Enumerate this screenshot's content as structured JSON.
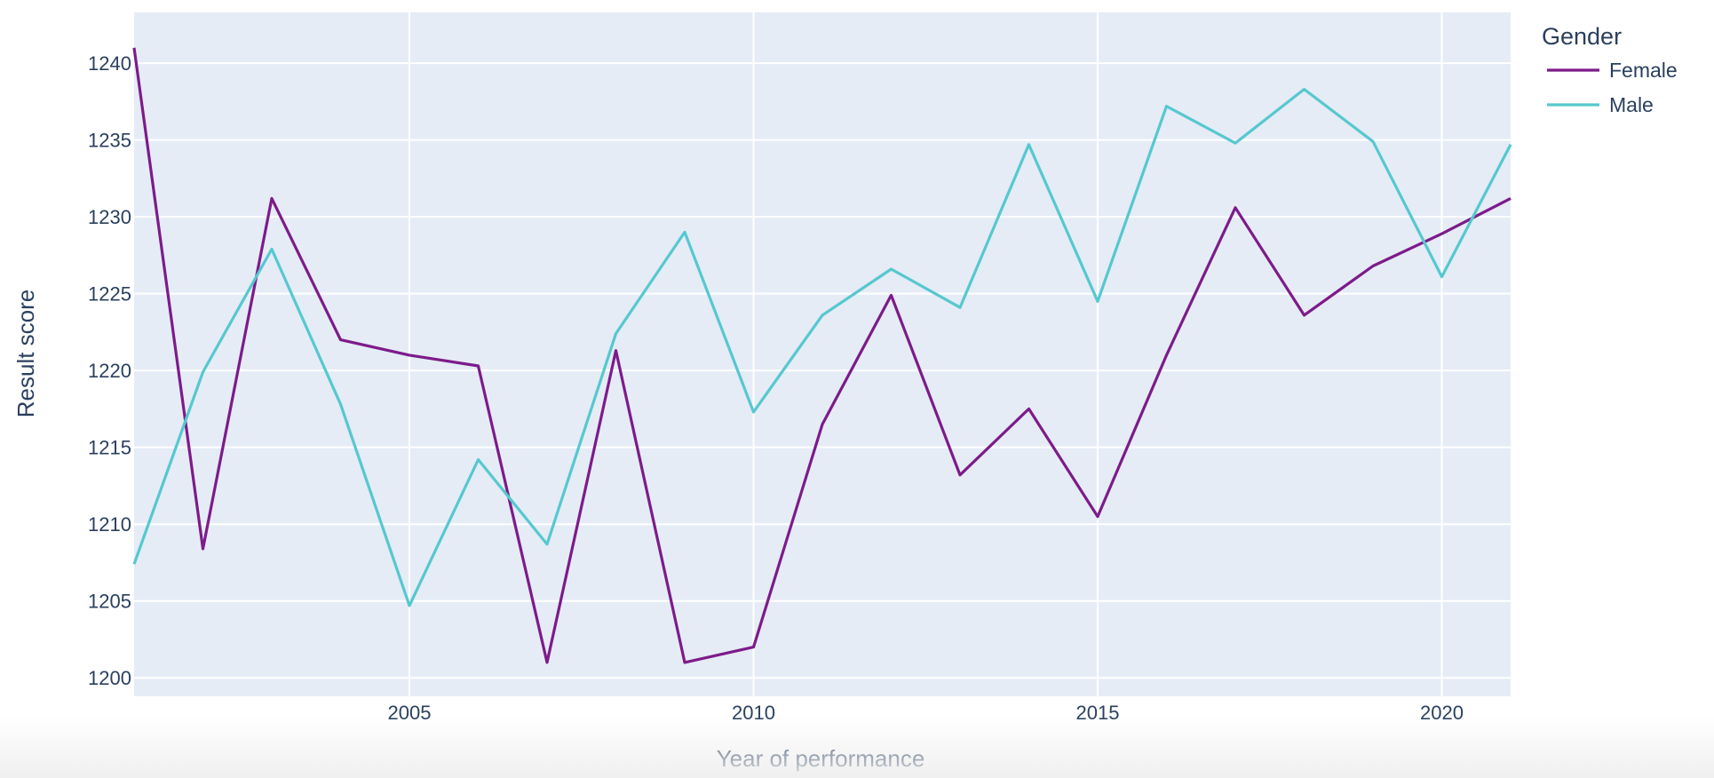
{
  "chart_data": {
    "type": "line",
    "title": "",
    "xlabel": "Year of performance",
    "ylabel": "Result score",
    "xlim": [
      2001,
      2021
    ],
    "ylim": [
      1198.8,
      1243.3
    ],
    "x_ticks": [
      2005,
      2010,
      2015,
      2020
    ],
    "y_ticks": [
      1200,
      1205,
      1210,
      1215,
      1220,
      1225,
      1230,
      1235,
      1240
    ],
    "grid": true,
    "legend": {
      "title": "Gender",
      "placement": "top-right outside plot"
    },
    "x": [
      2001,
      2002,
      2003,
      2004,
      2005,
      2006,
      2007,
      2008,
      2009,
      2010,
      2011,
      2012,
      2013,
      2014,
      2015,
      2016,
      2017,
      2018,
      2019,
      2020,
      2021
    ],
    "series": [
      {
        "name": "Female",
        "color": "#7d1b8a",
        "values": [
          1241,
          1208.4,
          1231.2,
          1222,
          1221,
          1220.3,
          1201,
          1221.3,
          1201,
          1202,
          1216.5,
          1224.9,
          1213.2,
          1217.5,
          1210.5,
          1221,
          1230.6,
          1223.6,
          1226.8,
          1228.9,
          1231.2
        ]
      },
      {
        "name": "Male",
        "color": "#56c8cf",
        "values": [
          1207.4,
          1219.9,
          1227.9,
          1217.8,
          1204.7,
          1214.2,
          1208.7,
          1222.4,
          1229,
          1217.3,
          1223.6,
          1226.6,
          1224.1,
          1234.7,
          1224.5,
          1237.2,
          1234.8,
          1238.3,
          1234.9,
          1226.1,
          1234.7
        ]
      }
    ]
  },
  "style": {
    "plot_bg": "#e5ecf6",
    "grid_color": "#ffffff",
    "text_color": "#2a3f5f"
  }
}
